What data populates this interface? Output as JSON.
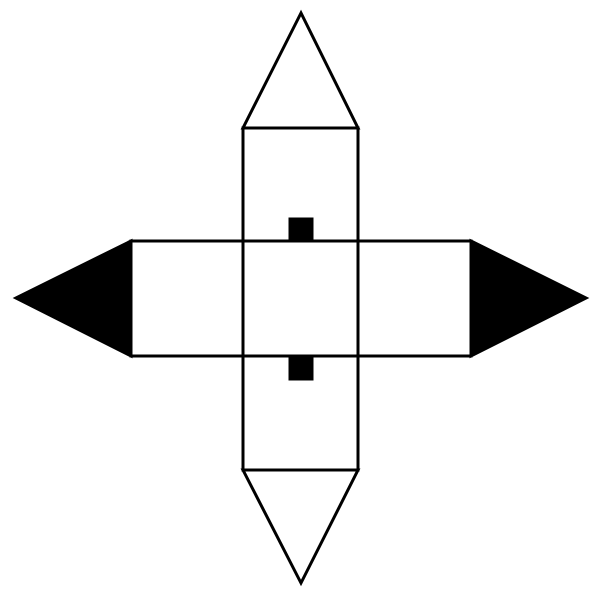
{
  "figure": {
    "description_visible_text": "",
    "colors": {
      "stroke": "#000000",
      "fill_light": "#ffffff",
      "fill_dark": "#000000",
      "background": "#ffffff"
    },
    "parts": {
      "top_triangle": {
        "fill": "white"
      },
      "bottom_triangle": {
        "fill": "white"
      },
      "left_triangle": {
        "fill": "black"
      },
      "right_triangle": {
        "fill": "black"
      },
      "center_square": {
        "fill": "white"
      },
      "top_rectangle": {
        "fill": "white"
      },
      "bottom_rectangle": {
        "fill": "white"
      },
      "left_rectangle": {
        "fill": "white"
      },
      "right_rectangle": {
        "fill": "white"
      },
      "upper_tab": {
        "fill": "black"
      },
      "lower_tab": {
        "fill": "black"
      }
    }
  }
}
